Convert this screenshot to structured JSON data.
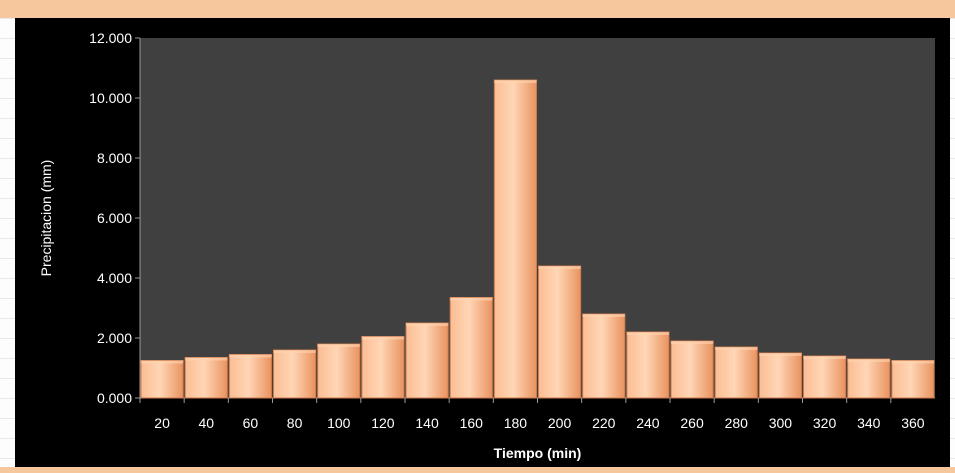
{
  "chart_data": {
    "type": "bar",
    "title": "",
    "xlabel": "Tiempo (min)",
    "ylabel": "Precipitacion (mm)",
    "ylim": [
      0,
      12
    ],
    "yticks": [
      "0.000",
      "2.000",
      "4.000",
      "6.000",
      "8.000",
      "10.000",
      "12.000"
    ],
    "categories": [
      "20",
      "40",
      "60",
      "80",
      "100",
      "120",
      "140",
      "160",
      "180",
      "200",
      "220",
      "240",
      "260",
      "280",
      "300",
      "320",
      "340",
      "360"
    ],
    "values": [
      1.25,
      1.35,
      1.45,
      1.6,
      1.8,
      2.05,
      2.5,
      3.35,
      10.6,
      4.4,
      2.8,
      2.2,
      1.9,
      1.7,
      1.5,
      1.4,
      1.3,
      1.25
    ],
    "grid": false,
    "legend": "none",
    "colors": {
      "plot_background": "#404040",
      "chart_background": "#000000",
      "bar_fill": "#f4a77a",
      "bar_highlight": "#ffd3b0",
      "text": "#ffffff"
    }
  }
}
